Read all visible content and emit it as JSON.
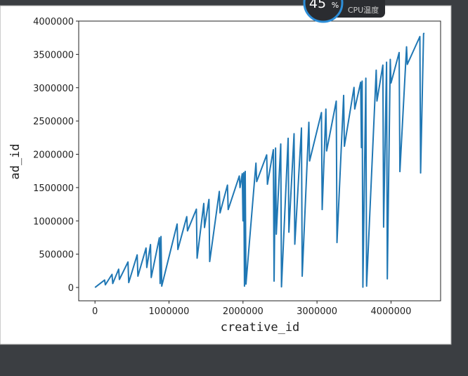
{
  "chart_data": {
    "type": "line",
    "xlabel": "creative_id",
    "ylabel": "ad_id",
    "x": [
      0,
      130000,
      140000,
      230000,
      240000,
      320000,
      330000,
      446000,
      456000,
      570000,
      580000,
      690000,
      700000,
      750000,
      760000,
      870000,
      880000,
      892000,
      902000,
      1110000,
      1120000,
      1240000,
      1250000,
      1370000,
      1380000,
      1470000,
      1480000,
      1540000,
      1550000,
      1680000,
      1690000,
      1790000,
      1800000,
      1950000,
      1960000,
      1990000,
      2000000,
      2010000,
      2020000,
      2030000,
      2040000,
      2175000,
      2185000,
      2320000,
      2330000,
      2410000,
      2420000,
      2440000,
      2450000,
      2510000,
      2520000,
      2610000,
      2620000,
      2690000,
      2700000,
      2790000,
      2800000,
      2890000,
      2900000,
      3060000,
      3070000,
      3120000,
      3130000,
      3260000,
      3270000,
      3360000,
      3370000,
      3500000,
      3510000,
      3590000,
      3600000,
      3610000,
      3620000,
      3660000,
      3670000,
      3800000,
      3810000,
      3890000,
      3900000,
      3940000,
      3950000,
      3990000,
      4000000,
      4110000,
      4120000,
      4210000,
      4220000,
      4390000,
      4400000,
      4440000,
      4450000
    ],
    "series": [
      {
        "color": "#1f77b4",
        "values": [
          0,
          112000,
          40000,
          197000,
          60000,
          275000,
          120000,
          383000,
          74000,
          489000,
          170000,
          592000,
          300000,
          644000,
          150000,
          747000,
          60000,
          766000,
          20000,
          953000,
          570000,
          1064000,
          850000,
          1176000,
          440000,
          1262000,
          900000,
          1322000,
          390000,
          1442000,
          1120000,
          1537000,
          1170000,
          1674000,
          1500000,
          1708000,
          1000000,
          1725000,
          20000,
          1743000,
          50000,
          1867000,
          1590000,
          1991000,
          1550000,
          2069000,
          95000,
          2094000,
          800000,
          2155000,
          10000,
          2240000,
          830000,
          2309000,
          650000,
          2395000,
          170000,
          2481000,
          1900000,
          2627000,
          1170000,
          2678000,
          2050000,
          2798000,
          675000,
          2884000,
          2120000,
          3004000,
          2680000,
          3082000,
          2100000,
          3099000,
          5000,
          3142000,
          20000,
          3262000,
          2800000,
          3339000,
          907000,
          3382000,
          130000,
          3425000,
          3070000,
          3528000,
          1740000,
          3614000,
          3350000,
          3768000,
          1720000,
          3811000,
          3820000
        ]
      }
    ],
    "xlim": [
      -220000,
      4670000
    ],
    "ylim": [
      -200000,
      4000000
    ],
    "xticks": [
      0,
      1000000,
      2000000,
      3000000,
      4000000
    ],
    "yticks": [
      0,
      500000,
      1000000,
      1500000,
      2000000,
      2500000,
      3000000,
      3500000,
      4000000
    ]
  },
  "overlay": {
    "percent": "45",
    "unit": "%",
    "label": "CPU温度"
  }
}
